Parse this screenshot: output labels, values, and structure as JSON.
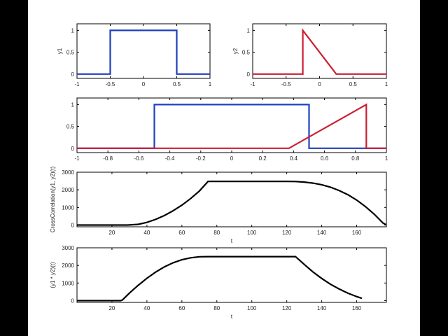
{
  "window": {
    "background": "#000000",
    "figure_background": "#ffffff"
  },
  "colors": {
    "y1": "#1f3fbf",
    "y2": "#cc1f33",
    "result": "#000000"
  },
  "chart_data": [
    {
      "type": "line",
      "ylabel": "y1",
      "xlim": [
        -1,
        1
      ],
      "ylim": [
        -0.1,
        1.15
      ],
      "xticks": [
        -1,
        -0.5,
        0,
        0.5,
        1
      ],
      "xtick_labels": [
        "-1",
        "-0.5",
        "0",
        "0.5",
        "1"
      ],
      "yticks": [
        0,
        0.5,
        1
      ],
      "ytick_labels": [
        "0",
        "0.5",
        "1"
      ],
      "series": [
        {
          "color": "#1f3fbf",
          "x": [
            -1,
            -0.5,
            -0.5,
            0.5,
            0.5,
            1
          ],
          "y": [
            0,
            0,
            1,
            1,
            0,
            0
          ]
        }
      ]
    },
    {
      "type": "line",
      "ylabel": "y2",
      "xlim": [
        -1,
        1
      ],
      "ylim": [
        -0.1,
        1.15
      ],
      "xticks": [
        -1,
        -0.5,
        0,
        0.5,
        1
      ],
      "xtick_labels": [
        "-1",
        "-0.5",
        "0",
        "0.5",
        "1"
      ],
      "yticks": [
        0,
        0.5,
        1
      ],
      "ytick_labels": [
        "0",
        "0.5",
        "1"
      ],
      "series": [
        {
          "color": "#cc1f33",
          "x": [
            -1,
            -0.25,
            -0.25,
            0.25,
            1
          ],
          "y": [
            0,
            0,
            1,
            0,
            0
          ]
        }
      ]
    },
    {
      "type": "line",
      "xlim": [
        -1,
        1
      ],
      "ylim": [
        -0.1,
        1.15
      ],
      "xticks": [
        -1,
        -0.8,
        -0.6,
        -0.4,
        -0.2,
        0,
        0.2,
        0.4,
        0.6,
        0.8,
        1
      ],
      "xtick_labels": [
        "-1",
        "-0.8",
        "-0.6",
        "-0.4",
        "-0.2",
        "0",
        "0.2",
        "0.4",
        "0.6",
        "0.8",
        "1"
      ],
      "yticks": [
        0,
        0.5,
        1
      ],
      "ytick_labels": [
        "0",
        "0.5",
        "1"
      ],
      "series": [
        {
          "color": "#1f3fbf",
          "x": [
            -1,
            -0.5,
            -0.5,
            0.5,
            0.5,
            1
          ],
          "y": [
            0,
            0,
            1,
            1,
            0,
            0
          ]
        },
        {
          "color": "#cc1f33",
          "x": [
            -1,
            0.37,
            0.87,
            0.87,
            1
          ],
          "y": [
            0,
            0,
            1,
            0,
            0
          ]
        }
      ]
    },
    {
      "type": "line",
      "xlabel": "t",
      "ylabel": "CrossCorrelation(y1, y2)(t)",
      "xlim": [
        0,
        177
      ],
      "ylim": [
        -100,
        3000
      ],
      "xticks": [
        20,
        40,
        60,
        80,
        100,
        120,
        140,
        160
      ],
      "xtick_labels": [
        "20",
        "40",
        "60",
        "80",
        "100",
        "120",
        "140",
        "160"
      ],
      "yticks": [
        0,
        1000,
        2000,
        3000
      ],
      "ytick_labels": [
        "0",
        "1000",
        "2000",
        "3000"
      ],
      "series": [
        {
          "color": "#000000",
          "x": [
            0,
            29,
            35,
            40,
            45,
            50,
            55,
            60,
            65,
            70,
            75,
            80,
            100,
            120,
            125,
            130,
            135,
            140,
            145,
            150,
            155,
            160,
            165,
            170,
            175,
            177
          ],
          "y": [
            0,
            0,
            40,
            150,
            320,
            540,
            810,
            1130,
            1500,
            1930,
            2480,
            2480,
            2480,
            2480,
            2470,
            2440,
            2380,
            2290,
            2150,
            1960,
            1720,
            1420,
            1050,
            620,
            120,
            0
          ]
        }
      ]
    },
    {
      "type": "line",
      "xlabel": "t",
      "ylabel": "(y1 * y2)(t)",
      "xlim": [
        0,
        177
      ],
      "ylim": [
        -100,
        3000
      ],
      "xticks": [
        20,
        40,
        60,
        80,
        100,
        120,
        140,
        160
      ],
      "xtick_labels": [
        "20",
        "40",
        "60",
        "80",
        "100",
        "120",
        "140",
        "160"
      ],
      "yticks": [
        0,
        1000,
        2000,
        3000
      ],
      "ytick_labels": [
        "0",
        "1000",
        "2000",
        "3000"
      ],
      "series": [
        {
          "color": "#000000",
          "x": [
            0,
            25,
            26,
            30,
            35,
            40,
            45,
            50,
            55,
            60,
            65,
            70,
            75,
            100,
            125,
            130,
            135,
            140,
            145,
            150,
            155,
            160,
            163
          ],
          "y": [
            0,
            0,
            40,
            430,
            870,
            1270,
            1620,
            1920,
            2150,
            2320,
            2430,
            2490,
            2500,
            2500,
            2500,
            2060,
            1630,
            1260,
            930,
            660,
            420,
            230,
            130
          ]
        }
      ]
    }
  ]
}
